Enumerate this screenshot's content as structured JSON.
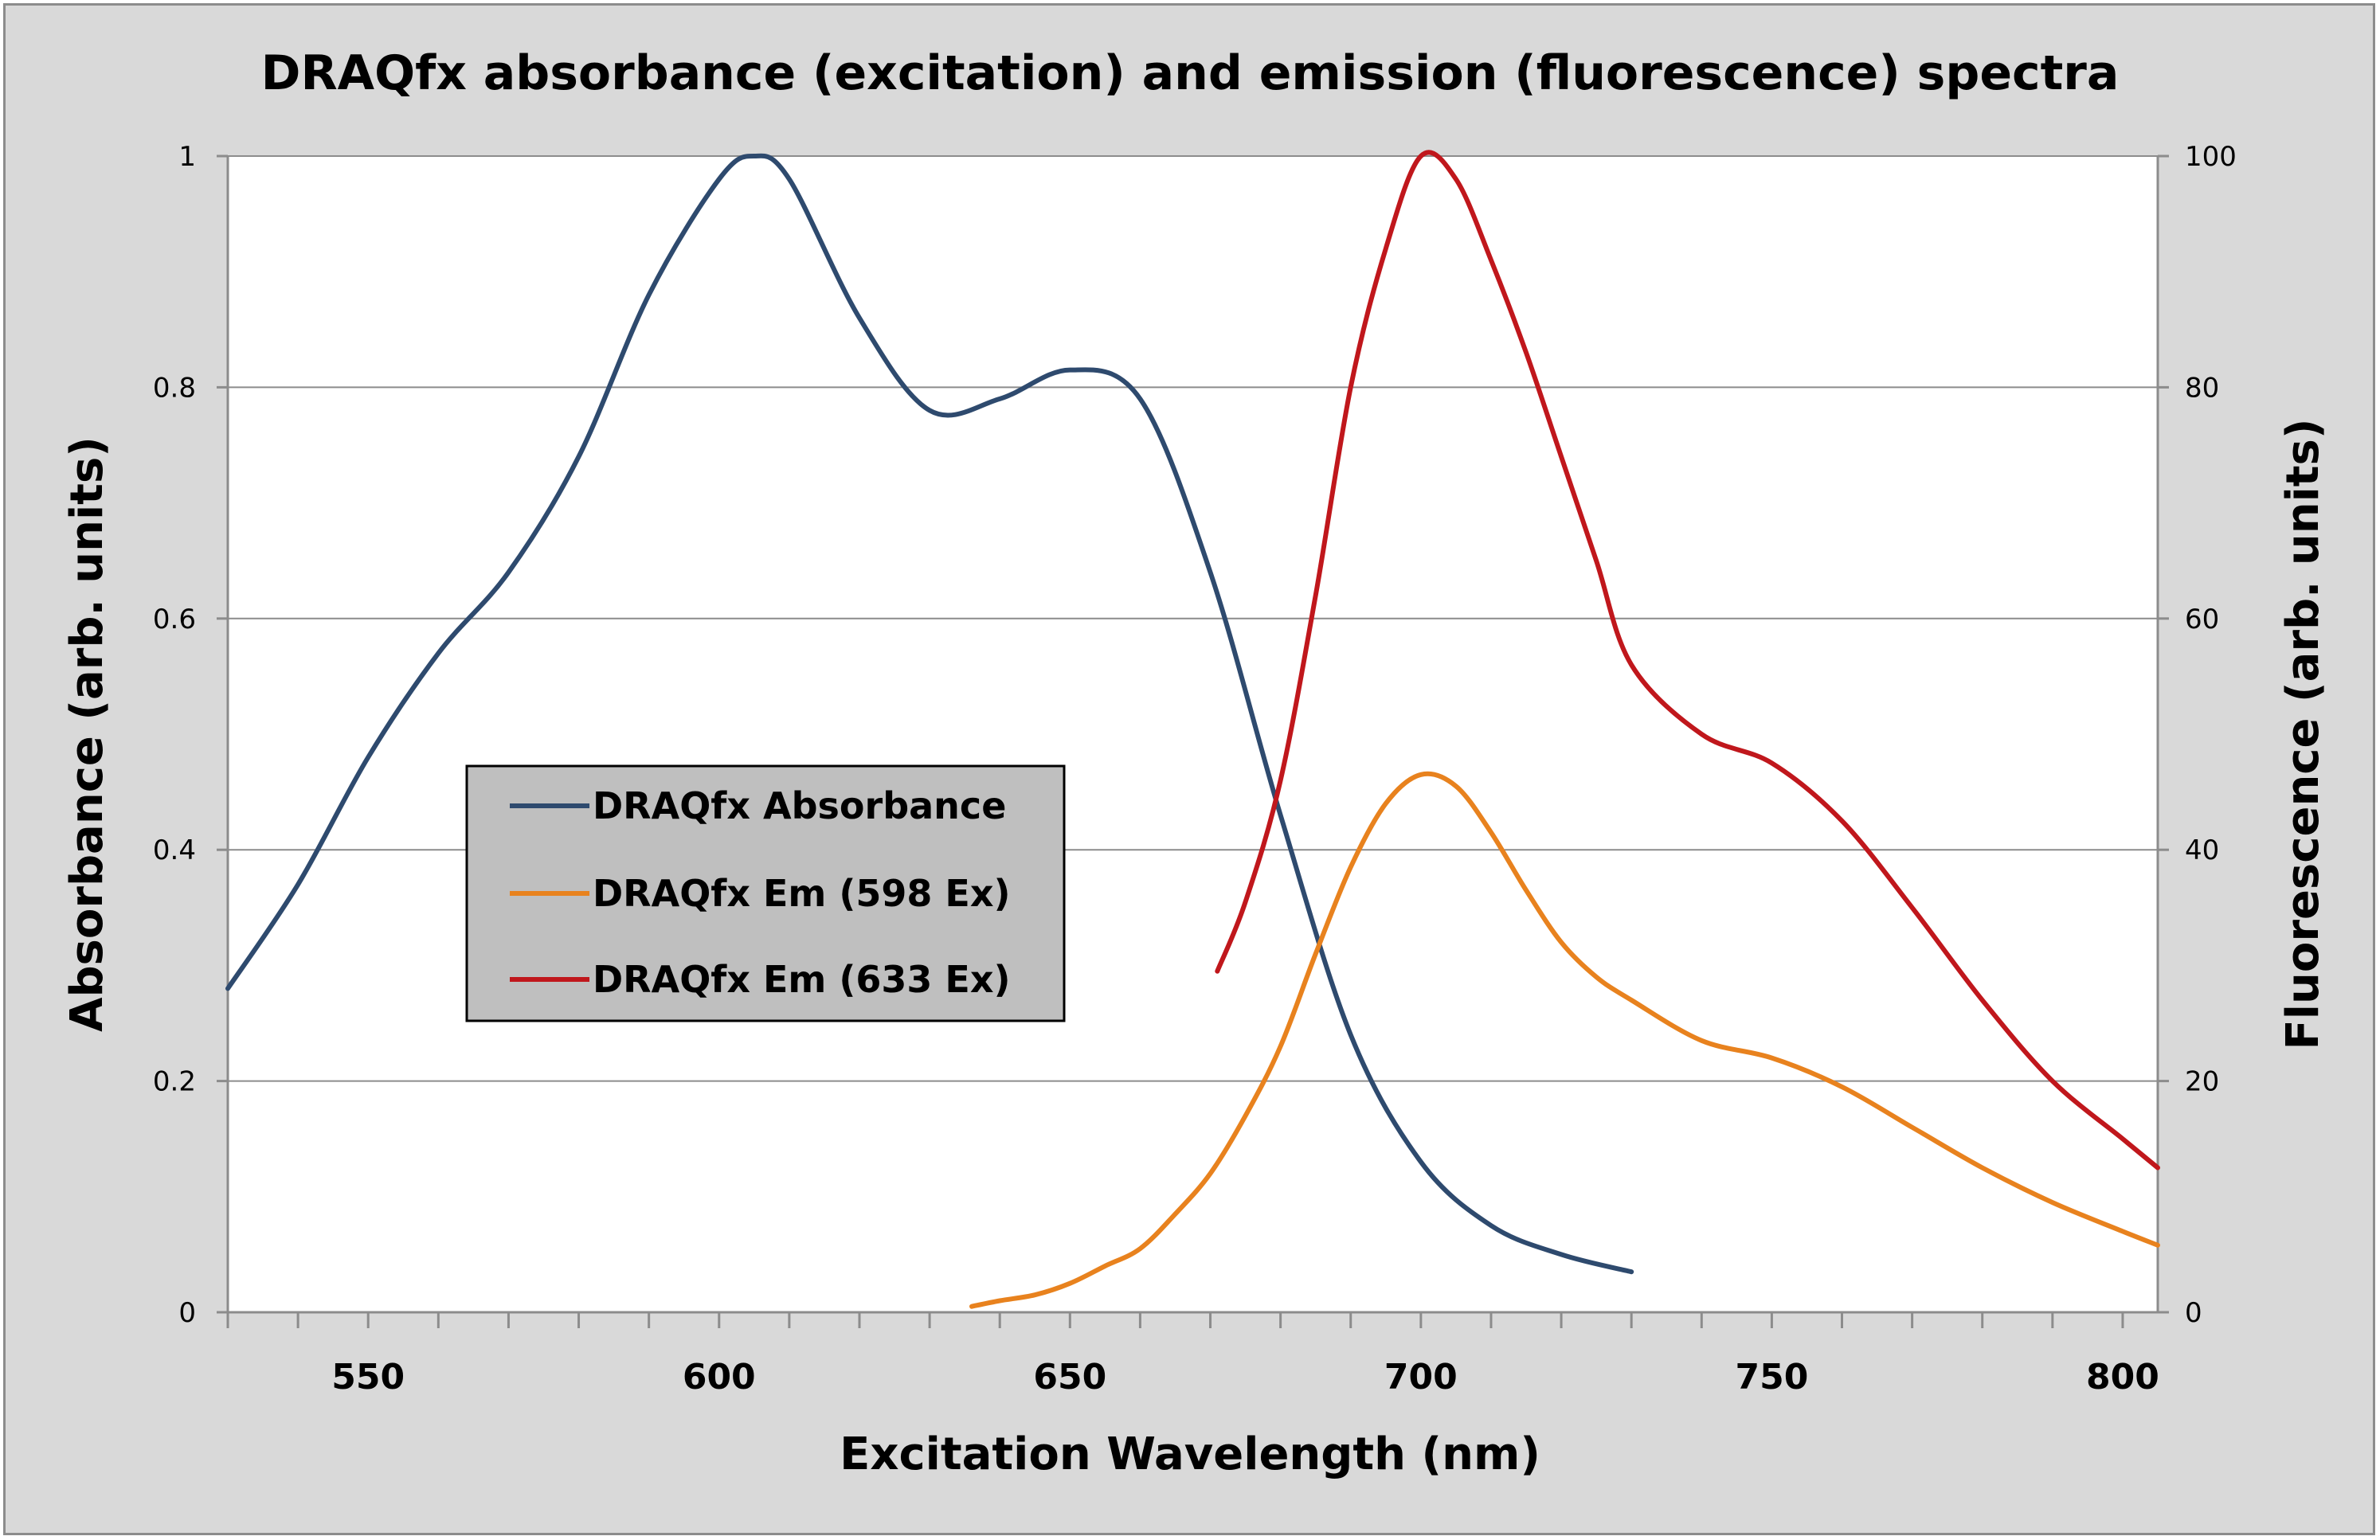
{
  "chart_data": {
    "type": "line",
    "title": "DRAQfx absorbance (excitation) and emission (fluorescence) spectra",
    "xlabel": "Excitation Wavelength (nm)",
    "ylabel": "Absorbance (arb. units)",
    "y2label": "Fluorescence (arb. units)",
    "xlim": [
      530,
      805
    ],
    "ylim": [
      0,
      1
    ],
    "y2lim": [
      0,
      100
    ],
    "xticks": [
      550,
      600,
      650,
      700,
      750,
      800
    ],
    "yticks": [
      0,
      0.2,
      0.4,
      0.6,
      0.8,
      1
    ],
    "y2ticks": [
      0,
      20,
      40,
      60,
      80,
      100
    ],
    "grid": true,
    "legend": "center-left",
    "series": [
      {
        "name": "DRAQfx Absorbance",
        "axis": "left",
        "color": "#2e4a6e",
        "x": [
          530,
          540,
          550,
          560,
          570,
          580,
          590,
          600,
          605,
          610,
          620,
          630,
          640,
          650,
          660,
          670,
          680,
          690,
          700,
          710,
          720,
          730
        ],
        "y": [
          0.28,
          0.37,
          0.48,
          0.57,
          0.64,
          0.74,
          0.88,
          0.98,
          1.0,
          0.98,
          0.86,
          0.78,
          0.79,
          0.815,
          0.79,
          0.64,
          0.43,
          0.24,
          0.13,
          0.075,
          0.05,
          0.035
        ]
      },
      {
        "name": "DRAQfx Em (598 Ex)",
        "axis": "right",
        "color": "#e8821e",
        "x": [
          636,
          640,
          645,
          650,
          655,
          660,
          665,
          670,
          675,
          680,
          685,
          690,
          695,
          700,
          705,
          710,
          715,
          720,
          725,
          730,
          740,
          750,
          760,
          770,
          780,
          790,
          800,
          805
        ],
        "y": [
          0.5,
          1.0,
          1.5,
          2.5,
          4.0,
          5.5,
          8.5,
          12,
          17,
          23,
          31,
          38.5,
          44,
          46.5,
          45.5,
          41.5,
          36.5,
          32,
          29,
          27,
          23.5,
          22,
          19.5,
          16,
          12.5,
          9.5,
          7,
          5.8
        ]
      },
      {
        "name": "DRAQfx Em (633 Ex)",
        "axis": "right",
        "color": "#c0171c",
        "x": [
          671,
          675,
          680,
          685,
          690,
          695,
          700,
          705,
          710,
          715,
          720,
          725,
          730,
          740,
          750,
          760,
          770,
          780,
          790,
          800,
          805
        ],
        "y": [
          29.5,
          35.5,
          46,
          62,
          80,
          92,
          100,
          98,
          91,
          83,
          74,
          65,
          56,
          50,
          47.5,
          42.5,
          35,
          27,
          20,
          15,
          12.5
        ]
      }
    ]
  }
}
